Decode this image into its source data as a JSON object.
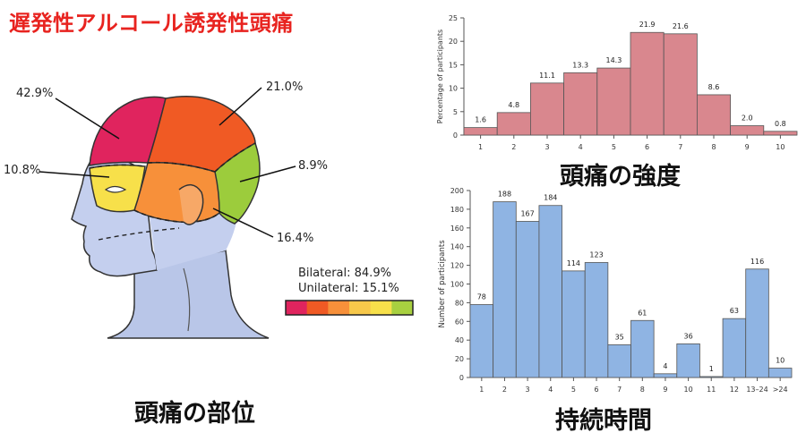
{
  "title": "遅発性アルコール誘発性頭痛",
  "head_figure": {
    "regions": [
      {
        "name": "frontal-top",
        "percent": "42.9%",
        "color": "#e0245e"
      },
      {
        "name": "parietal",
        "percent": "21.0%",
        "color": "#f05a24"
      },
      {
        "name": "orbital",
        "percent": "10.8%",
        "color": "#f7e04a"
      },
      {
        "name": "occipital",
        "percent": "8.9%",
        "color": "#9ccc3c"
      },
      {
        "name": "temporal",
        "percent": "16.4%",
        "color": "#f7903a"
      }
    ],
    "bilateral": "Bilateral: 84.9%",
    "unilateral": "Unilateral: 15.1%",
    "legend_colors": [
      "#e0245e",
      "#f05a24",
      "#f7903a",
      "#f7c84a",
      "#f7e04a",
      "#a8d040"
    ],
    "caption": "頭痛の部位"
  },
  "chart_data": [
    {
      "type": "bar",
      "name": "intensity",
      "caption": "頭痛の強度",
      "ylabel": "Percentage of participants",
      "categories": [
        "1",
        "2",
        "3",
        "4",
        "5",
        "6",
        "7",
        "8",
        "9",
        "10"
      ],
      "values": [
        1.6,
        4.8,
        11.1,
        13.3,
        14.3,
        21.9,
        21.6,
        8.6,
        2.0,
        0.8
      ],
      "value_labels": [
        "1.6",
        "4.8",
        "11.1",
        "13.3",
        "14.3",
        "21.9",
        "21.6",
        "8.6",
        "2.0",
        "0.8"
      ],
      "ylim": [
        0,
        25
      ],
      "yticks": [
        "0",
        "5",
        "10",
        "15",
        "20",
        "25"
      ],
      "bar_color": "#d9878e",
      "grid": false
    },
    {
      "type": "bar",
      "name": "duration",
      "caption": "持続時間",
      "ylabel": "Number of participants",
      "categories": [
        "1",
        "2",
        "3",
        "4",
        "5",
        "6",
        "7",
        "8",
        "9",
        "10",
        "11",
        "12",
        "13–24",
        ">24"
      ],
      "values": [
        78,
        188,
        167,
        184,
        114,
        123,
        35,
        61,
        4,
        36,
        1,
        63,
        116,
        10
      ],
      "value_labels": [
        "78",
        "188",
        "167",
        "184",
        "114",
        "123",
        "35",
        "61",
        "4",
        "36",
        "1",
        "63",
        "116",
        "10"
      ],
      "ylim": [
        0,
        200
      ],
      "yticks": [
        "0",
        "20",
        "40",
        "60",
        "80",
        "100",
        "120",
        "140",
        "160",
        "180",
        "200"
      ],
      "bar_color": "#8fb4e3",
      "grid": false
    }
  ]
}
